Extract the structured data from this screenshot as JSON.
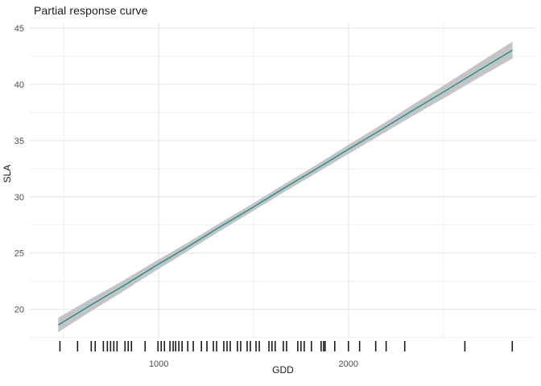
{
  "chart_data": {
    "type": "line",
    "title": "Partial response curve",
    "xlabel": "GDD",
    "ylabel": "SLA",
    "xlim": [
      320,
      2990
    ],
    "ylim": [
      17.4,
      45.5
    ],
    "x_major_ticks": [
      1000,
      2000
    ],
    "x_minor_ticks": [
      500,
      1500,
      2500
    ],
    "y_major_ticks": [
      20,
      25,
      30,
      35,
      40,
      45
    ],
    "y_minor_ticks": [
      17.5,
      22.5,
      27.5,
      32.5,
      37.5,
      42.5
    ],
    "grid": true,
    "legend": "none",
    "series": [
      {
        "name": "fit",
        "x": [
          470,
          640,
          810,
          980,
          1150,
          1320,
          1490,
          1660,
          1830,
          2000,
          2170,
          2340,
          2510,
          2680,
          2865
        ],
        "y": [
          18.6,
          20.36,
          22.05,
          23.83,
          25.52,
          27.3,
          29.0,
          30.77,
          32.47,
          34.23,
          35.94,
          37.7,
          39.41,
          41.17,
          43.05
        ],
        "lower": [
          17.95,
          19.8,
          21.57,
          23.4,
          25.14,
          26.94,
          28.66,
          30.42,
          32.1,
          33.82,
          35.5,
          37.2,
          38.84,
          40.52,
          42.3
        ],
        "upper": [
          19.25,
          20.92,
          22.53,
          24.25,
          25.9,
          27.65,
          29.34,
          31.12,
          32.84,
          34.63,
          36.38,
          38.2,
          39.98,
          41.82,
          43.8
        ]
      }
    ],
    "rug_x": [
      479,
      572,
      644,
      665,
      708,
      729,
      746,
      763,
      780,
      822,
      839,
      856,
      928,
      996,
      1013,
      1030,
      1059,
      1076,
      1089,
      1106,
      1123,
      1153,
      1182,
      1225,
      1254,
      1288,
      1305,
      1343,
      1360,
      1377,
      1415,
      1432,
      1466,
      1483,
      1513,
      1530,
      1581,
      1597,
      1614,
      1657,
      1674,
      1733,
      1750,
      1767,
      1805,
      1856,
      1869,
      1877,
      1928,
      2000,
      2059,
      2144,
      2199,
      2297,
      2614,
      2864
    ],
    "colors": {
      "line": "#1f8f8f",
      "ribbon": "#c4c4c4",
      "grid_major": "#e4e4e4",
      "grid_minor": "#efefef",
      "axis_text": "#4d4d4d",
      "title_text": "#1a1a1a",
      "rug": "#1a1a1a",
      "background": "#ffffff"
    }
  }
}
